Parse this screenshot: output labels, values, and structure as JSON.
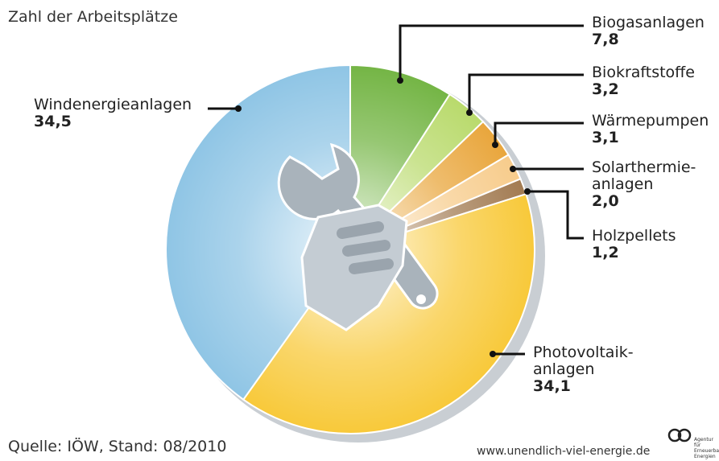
{
  "chart_data": {
    "type": "pie",
    "title": "Zahl der Arbeitsplätze",
    "categories": [
      "Biogasanlagen",
      "Biokraftstoffe",
      "Wärmepumpen",
      "Solarthermie-\nanlagen",
      "Holzpellets",
      "Photovoltaik-\nanlagen",
      "Windenergieanlagen"
    ],
    "values": [
      7.8,
      3.2,
      3.1,
      2.0,
      1.2,
      34.1,
      34.5
    ],
    "value_labels": [
      "7,8",
      "3,2",
      "3,1",
      "2,0",
      "1,2",
      "34,1",
      "34,5"
    ],
    "colors": [
      "#74b545",
      "#b9da6c",
      "#e9a63c",
      "#f7cc8c",
      "#a27b52",
      "#f8c93a",
      "#8fc5e5"
    ],
    "source": "Quelle: IÖW, Stand: 08/2010",
    "website": "www.unendlich-viel-energie.de",
    "logo_text": "Agentur für Erneuerbare Energien"
  }
}
